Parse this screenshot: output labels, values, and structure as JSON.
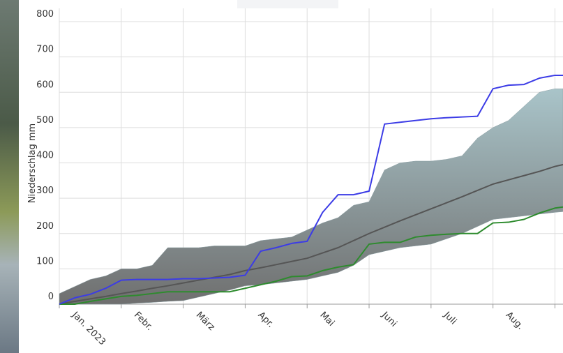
{
  "chart_data": {
    "type": "line",
    "y_label": "Niederschlag mm",
    "x": [
      0,
      0.25,
      0.5,
      0.75,
      1,
      1.25,
      1.5,
      1.75,
      2,
      2.25,
      2.5,
      2.75,
      3,
      3.25,
      3.5,
      3.75,
      4,
      4.25,
      4.5,
      4.75,
      5,
      5.25,
      5.5,
      5.75,
      6,
      6.25,
      6.5,
      6.75,
      7,
      7.25,
      7.5,
      7.75,
      8,
      8.13
    ],
    "xlim": [
      0,
      8.13
    ],
    "xticks": [
      {
        "value": 0,
        "label": "Jan. 2023"
      },
      {
        "value": 1,
        "label": "Febr."
      },
      {
        "value": 2,
        "label": "März"
      },
      {
        "value": 3,
        "label": "Apr."
      },
      {
        "value": 4,
        "label": "Mai"
      },
      {
        "value": 5,
        "label": "Juni"
      },
      {
        "value": 6,
        "label": "Juli"
      },
      {
        "value": 7,
        "label": "Aug."
      },
      {
        "value": 8,
        "label": ""
      }
    ],
    "ylim": [
      0,
      800
    ],
    "yticks": [
      0,
      100,
      200,
      300,
      400,
      500,
      600,
      700,
      800
    ],
    "grid": true,
    "band": {
      "color": "#8a9ea3",
      "lower": [
        0,
        0,
        0,
        0,
        0,
        3,
        5,
        8,
        10,
        20,
        30,
        40,
        52,
        55,
        60,
        65,
        70,
        80,
        90,
        110,
        140,
        150,
        160,
        165,
        170,
        185,
        200,
        220,
        240,
        245,
        250,
        255,
        260,
        262
      ],
      "upper": [
        30,
        50,
        70,
        80,
        100,
        100,
        110,
        160,
        160,
        160,
        165,
        165,
        165,
        180,
        185,
        190,
        210,
        230,
        245,
        280,
        290,
        380,
        400,
        405,
        405,
        410,
        420,
        470,
        500,
        520,
        560,
        600,
        610,
        610
      ]
    },
    "series": [
      {
        "color": "#555555",
        "values": [
          0,
          8,
          15,
          22,
          30,
          37,
          45,
          52,
          60,
          68,
          76,
          84,
          95,
          103,
          112,
          121,
          130,
          145,
          160,
          180,
          200,
          218,
          236,
          253,
          270,
          287,
          304,
          322,
          340,
          352,
          364,
          376,
          390,
          395
        ]
      },
      {
        "color": "#2e8b2e",
        "values": [
          0,
          0,
          8,
          15,
          22,
          25,
          30,
          35,
          35,
          35,
          35,
          35,
          45,
          55,
          65,
          78,
          80,
          95,
          105,
          112,
          170,
          175,
          175,
          190,
          195,
          198,
          200,
          200,
          230,
          232,
          240,
          258,
          272,
          275
        ]
      },
      {
        "color": "#3c3ce6",
        "values": [
          0,
          18,
          28,
          45,
          68,
          70,
          70,
          70,
          72,
          72,
          74,
          76,
          82,
          150,
          160,
          172,
          178,
          260,
          310,
          310,
          320,
          510,
          515,
          520,
          525,
          528,
          530,
          532,
          610,
          620,
          622,
          640,
          648,
          648
        ]
      }
    ]
  }
}
